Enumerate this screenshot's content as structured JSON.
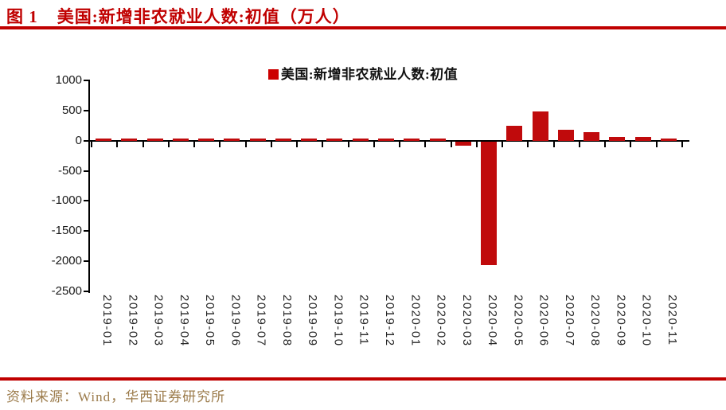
{
  "header": {
    "figure_label": "图 1",
    "title": "美国:新增非农就业人数:初值（万人）"
  },
  "legend": {
    "label": "美国:新增非农就业人数:初值"
  },
  "footer": {
    "source": "资料来源：Wind，华西证券研究所"
  },
  "colors": {
    "accent_red": "#c00000",
    "bar_red": "#c00a0c",
    "legend_swatch": "#cc0000",
    "source_text": "#9c7c4c",
    "axis": "#000000",
    "tick_label": "#1a1a1a"
  },
  "chart_data": {
    "type": "bar",
    "title": "美国:新增非农就业人数:初值（万人）",
    "xlabel": "",
    "ylabel": "",
    "unit": "万人",
    "grid": false,
    "legend_position": "top-center",
    "ylim": [
      -2500,
      1000
    ],
    "ytick_step": 500,
    "yticks": [
      1000,
      500,
      0,
      -500,
      -1000,
      -1500,
      -2000,
      -2500
    ],
    "categories": [
      "2019-01",
      "2019-02",
      "2019-03",
      "2019-04",
      "2019-05",
      "2019-06",
      "2019-07",
      "2019-08",
      "2019-09",
      "2019-10",
      "2019-11",
      "2019-12",
      "2020-01",
      "2020-02",
      "2020-03",
      "2020-04",
      "2020-05",
      "2020-06",
      "2020-07",
      "2020-08",
      "2020-09",
      "2020-10",
      "2020-11"
    ],
    "series": [
      {
        "name": "美国:新增非农就业人数:初值",
        "color": "#c00a0c",
        "values": [
          30.4,
          2.0,
          19.6,
          26.3,
          7.5,
          22.4,
          16.4,
          13.0,
          13.6,
          12.8,
          26.6,
          14.5,
          22.5,
          27.3,
          -70.1,
          -2050.0,
          250.9,
          480.0,
          176.3,
          137.1,
          66.1,
          63.8,
          24.5
        ]
      }
    ]
  }
}
